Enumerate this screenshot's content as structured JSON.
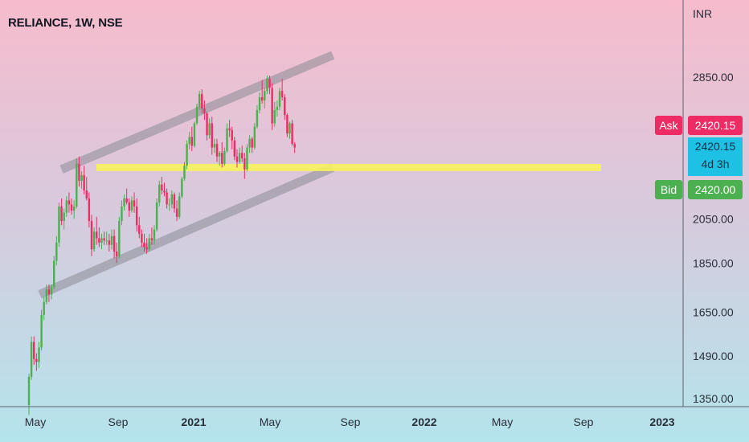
{
  "header": {
    "symbol_title": "RELIANCE, 1W, NSE"
  },
  "currency": "INR",
  "price_tags": {
    "ask_label": "Ask",
    "ask_value": "2420.15",
    "last_value": "2420.15",
    "countdown": "4d 3h",
    "bid_label": "Bid",
    "bid_value": "2420.00"
  },
  "colors": {
    "up": "#4caf50",
    "down": "#ee2b62",
    "ask": "#ee2b62",
    "bid": "#4caf50",
    "last": "#1ec0e4",
    "support_zone": "#f7f25c",
    "channel": "#8c8c96"
  },
  "chart_data": {
    "type": "candlestick",
    "title": "RELIANCE, 1W, NSE",
    "y_scale": "log",
    "y_ticks": [
      2850.0,
      2050.0,
      1850.0,
      1650.0,
      1490.0,
      1350.0
    ],
    "y_tick_labels": [
      "2850.00",
      "2050.00",
      "1850.00",
      "1650.00",
      "1490.00",
      "1350.00"
    ],
    "x_ticks": [
      "May",
      "Sep",
      "2021",
      "May",
      "Sep",
      "2022",
      "May",
      "Sep",
      "2023"
    ],
    "x_tick_bold": [
      false,
      false,
      true,
      false,
      false,
      true,
      false,
      false,
      true
    ],
    "candles": [
      [
        1330,
        1430,
        1300,
        1420
      ],
      [
        1420,
        1560,
        1410,
        1540
      ],
      [
        1540,
        1560,
        1460,
        1480
      ],
      [
        1480,
        1500,
        1440,
        1470
      ],
      [
        1470,
        1540,
        1450,
        1520
      ],
      [
        1520,
        1660,
        1510,
        1640
      ],
      [
        1640,
        1710,
        1620,
        1690
      ],
      [
        1690,
        1760,
        1680,
        1740
      ],
      [
        1740,
        1760,
        1690,
        1720
      ],
      [
        1720,
        1760,
        1700,
        1750
      ],
      [
        1750,
        1880,
        1740,
        1860
      ],
      [
        1860,
        1970,
        1840,
        1940
      ],
      [
        1940,
        2130,
        1920,
        2110
      ],
      [
        2110,
        2150,
        2020,
        2040
      ],
      [
        2040,
        2100,
        2000,
        2080
      ],
      [
        2080,
        2160,
        2060,
        2140
      ],
      [
        2140,
        2180,
        2080,
        2120
      ],
      [
        2120,
        2150,
        2070,
        2090
      ],
      [
        2090,
        2140,
        2050,
        2110
      ],
      [
        2110,
        2360,
        2100,
        2330
      ],
      [
        2330,
        2370,
        2210,
        2240
      ],
      [
        2240,
        2290,
        2200,
        2270
      ],
      [
        2270,
        2320,
        2170,
        2190
      ],
      [
        2190,
        2260,
        2140,
        2150
      ],
      [
        2150,
        2180,
        2010,
        2040
      ],
      [
        2040,
        2070,
        1880,
        1910
      ],
      [
        1910,
        2010,
        1900,
        1990
      ],
      [
        1990,
        2060,
        1930,
        1960
      ],
      [
        1960,
        2010,
        1920,
        1940
      ],
      [
        1940,
        1980,
        1910,
        1960
      ],
      [
        1960,
        1990,
        1930,
        1950
      ],
      [
        1950,
        1990,
        1930,
        1950
      ],
      [
        1950,
        1980,
        1900,
        1930
      ],
      [
        1930,
        2000,
        1910,
        1970
      ],
      [
        1970,
        2000,
        1870,
        1900
      ],
      [
        1900,
        1940,
        1850,
        1880
      ],
      [
        1880,
        2060,
        1870,
        2040
      ],
      [
        2040,
        2140,
        2020,
        2110
      ],
      [
        2110,
        2170,
        2090,
        2150
      ],
      [
        2150,
        2200,
        2120,
        2130
      ],
      [
        2130,
        2150,
        2060,
        2090
      ],
      [
        2090,
        2160,
        2080,
        2140
      ],
      [
        2140,
        2180,
        2080,
        2110
      ],
      [
        2110,
        2150,
        1990,
        2020
      ],
      [
        2020,
        2060,
        1960,
        1980
      ],
      [
        1980,
        2000,
        1920,
        1940
      ],
      [
        1940,
        1980,
        1900,
        1920
      ],
      [
        1920,
        1960,
        1890,
        1910
      ],
      [
        1910,
        1980,
        1900,
        1960
      ],
      [
        1960,
        2010,
        1930,
        1950
      ],
      [
        1950,
        2020,
        1930,
        2000
      ],
      [
        2000,
        2150,
        1990,
        2130
      ],
      [
        2130,
        2240,
        2110,
        2220
      ],
      [
        2220,
        2260,
        2170,
        2190
      ],
      [
        2190,
        2230,
        2160,
        2180
      ],
      [
        2180,
        2200,
        2100,
        2120
      ],
      [
        2120,
        2150,
        2090,
        2120
      ],
      [
        2120,
        2190,
        2100,
        2170
      ],
      [
        2170,
        2180,
        2080,
        2100
      ],
      [
        2100,
        2140,
        2040,
        2060
      ],
      [
        2060,
        2180,
        2050,
        2160
      ],
      [
        2160,
        2260,
        2150,
        2250
      ],
      [
        2250,
        2340,
        2240,
        2320
      ],
      [
        2320,
        2460,
        2300,
        2440
      ],
      [
        2440,
        2510,
        2410,
        2480
      ],
      [
        2480,
        2540,
        2400,
        2430
      ],
      [
        2430,
        2570,
        2420,
        2560
      ],
      [
        2560,
        2680,
        2550,
        2660
      ],
      [
        2660,
        2760,
        2640,
        2740
      ],
      [
        2740,
        2770,
        2620,
        2650
      ],
      [
        2650,
        2700,
        2580,
        2620
      ],
      [
        2620,
        2630,
        2460,
        2490
      ],
      [
        2490,
        2590,
        2470,
        2560
      ],
      [
        2560,
        2600,
        2380,
        2420
      ],
      [
        2420,
        2470,
        2390,
        2440
      ],
      [
        2440,
        2470,
        2340,
        2370
      ],
      [
        2370,
        2400,
        2320,
        2390
      ],
      [
        2390,
        2450,
        2310,
        2330
      ],
      [
        2330,
        2420,
        2320,
        2400
      ],
      [
        2400,
        2560,
        2390,
        2530
      ],
      [
        2530,
        2580,
        2480,
        2520
      ],
      [
        2520,
        2540,
        2410,
        2460
      ],
      [
        2460,
        2480,
        2350,
        2370
      ],
      [
        2370,
        2410,
        2310,
        2340
      ],
      [
        2340,
        2420,
        2330,
        2390
      ],
      [
        2390,
        2430,
        2340,
        2360
      ],
      [
        2360,
        2390,
        2250,
        2300
      ],
      [
        2300,
        2440,
        2290,
        2420
      ],
      [
        2420,
        2490,
        2390,
        2470
      ],
      [
        2470,
        2480,
        2390,
        2420
      ],
      [
        2420,
        2560,
        2410,
        2540
      ],
      [
        2540,
        2670,
        2530,
        2640
      ],
      [
        2640,
        2750,
        2620,
        2720
      ],
      [
        2720,
        2830,
        2680,
        2700
      ],
      [
        2700,
        2780,
        2650,
        2760
      ],
      [
        2760,
        2860,
        2740,
        2840
      ],
      [
        2840,
        2860,
        2740,
        2780
      ],
      [
        2780,
        2810,
        2520,
        2560
      ],
      [
        2560,
        2690,
        2540,
        2640
      ],
      [
        2640,
        2700,
        2600,
        2660
      ],
      [
        2660,
        2780,
        2640,
        2760
      ],
      [
        2760,
        2840,
        2700,
        2720
      ],
      [
        2720,
        2740,
        2580,
        2610
      ],
      [
        2610,
        2620,
        2480,
        2500
      ],
      [
        2500,
        2570,
        2470,
        2560
      ],
      [
        2560,
        2580,
        2430,
        2440
      ],
      [
        2440,
        2450,
        2390,
        2420
      ]
    ],
    "annotations": [
      {
        "type": "channel_upper",
        "from": [
          "2020-08",
          2300
        ],
        "to": [
          "2022-09",
          3000
        ]
      },
      {
        "type": "channel_lower",
        "from": [
          "2020-06",
          1720
        ],
        "to": [
          "2022-09",
          2310
        ]
      },
      {
        "type": "support_zone",
        "level": 2310
      }
    ],
    "ask": 2420.15,
    "bid": 2420.0,
    "last": 2420.15
  }
}
